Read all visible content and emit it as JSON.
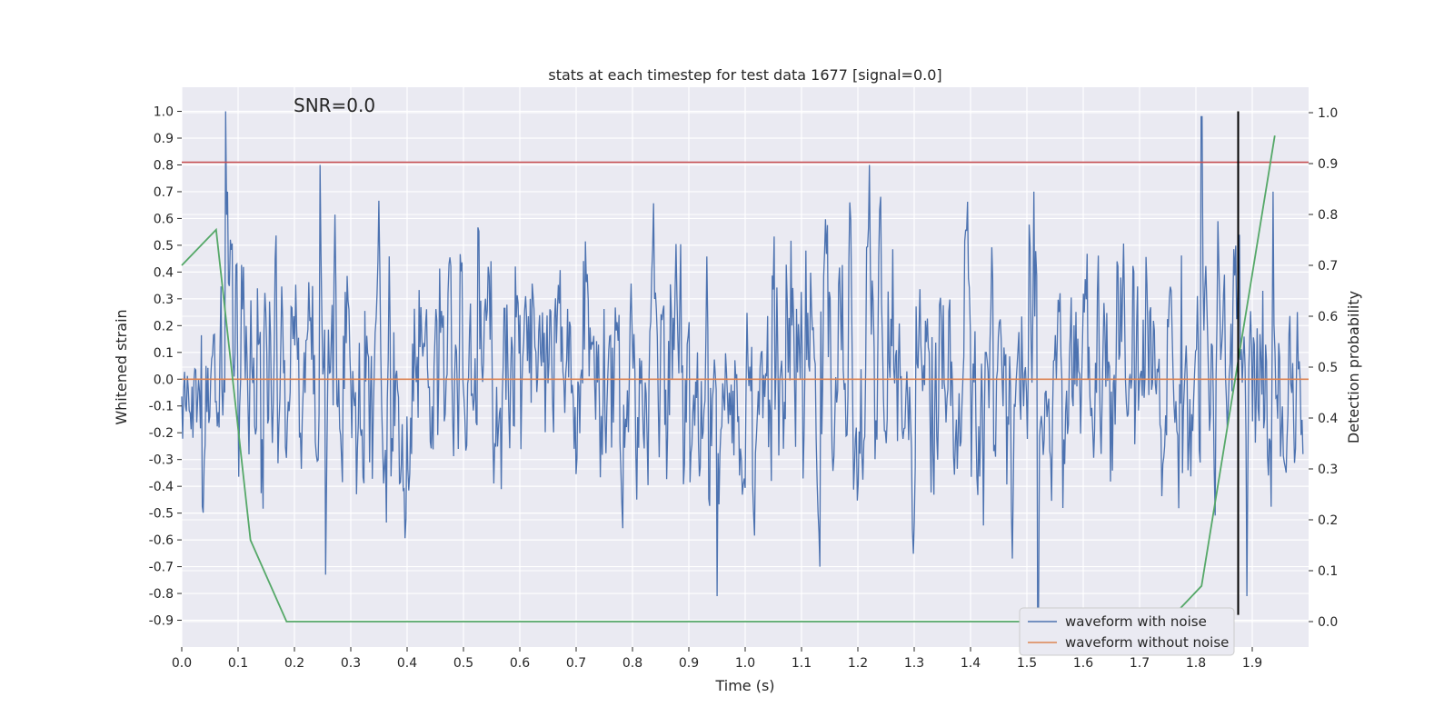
{
  "chart_data": {
    "type": "line",
    "title": "stats at each timestep for test data 1677 [signal=0.0]",
    "annotation": "SNR=0.0",
    "xlabel": "Time (s)",
    "ylabel_left": "Whitened strain",
    "ylabel_right": "Detection probability",
    "xlim": [
      0.0,
      2.0
    ],
    "ylim_left": [
      -1.0,
      1.09
    ],
    "ylim_right": [
      -0.05,
      1.05
    ],
    "x_ticks": [
      "0.0",
      "0.1",
      "0.2",
      "0.3",
      "0.4",
      "0.5",
      "0.6",
      "0.7",
      "0.8",
      "0.9",
      "1.0",
      "1.1",
      "1.2",
      "1.3",
      "1.4",
      "1.5",
      "1.6",
      "1.7",
      "1.8",
      "1.9"
    ],
    "y_ticks_left": [
      "1.0",
      "0.9",
      "0.8",
      "0.7",
      "0.6",
      "0.5",
      "0.4",
      "0.3",
      "0.2",
      "0.1",
      "0.0",
      "-0.1",
      "-0.2",
      "-0.3",
      "-0.4",
      "-0.5",
      "-0.6",
      "-0.7",
      "-0.8",
      "-0.9"
    ],
    "y_ticks_right": [
      "1.0",
      "0.9",
      "0.8",
      "0.7",
      "0.6",
      "0.5",
      "0.4",
      "0.3",
      "0.2",
      "0.1",
      "0.0"
    ],
    "grid": true,
    "legend_position": "bottom-right",
    "series": [
      {
        "name": "waveform with noise",
        "axis": "left",
        "color": "#4c72b0",
        "note_values": "dense noise signal sampled across 0-2 s, amplitude normalized to peak 1.0",
        "peaks": [
          {
            "x": 0.078,
            "y": 1.0
          },
          {
            "x": 0.245,
            "y": 0.8
          },
          {
            "x": 1.22,
            "y": 0.8
          },
          {
            "x": 1.81,
            "y": 0.98
          },
          {
            "x": 0.255,
            "y": -0.73
          },
          {
            "x": 0.95,
            "y": -0.81
          },
          {
            "x": 1.52,
            "y": -0.88
          },
          {
            "x": 1.89,
            "y": -0.81
          }
        ]
      },
      {
        "name": "waveform without noise",
        "axis": "left",
        "color": "#dd8452",
        "x": [
          0.0,
          2.0
        ],
        "y": [
          0.0,
          0.0
        ]
      },
      {
        "name": "",
        "axis": "right",
        "color": "#55a868",
        "x": [
          0.0,
          0.061,
          0.122,
          0.186,
          1.75,
          1.81,
          1.94
        ],
        "y": [
          0.7,
          0.77,
          0.16,
          0.0,
          0.0,
          0.07,
          0.955
        ]
      }
    ],
    "hlines": [
      {
        "axis": "left",
        "y": 0.81,
        "color": "#c44e52"
      }
    ],
    "vlines": [
      {
        "x": 1.875,
        "axis": "left",
        "ymin": -0.88,
        "ymax": 1.0,
        "color": "#000000"
      }
    ],
    "legend": [
      {
        "label": "waveform with noise",
        "color": "#4c72b0"
      },
      {
        "label": "waveform without noise",
        "color": "#dd8452"
      }
    ]
  }
}
